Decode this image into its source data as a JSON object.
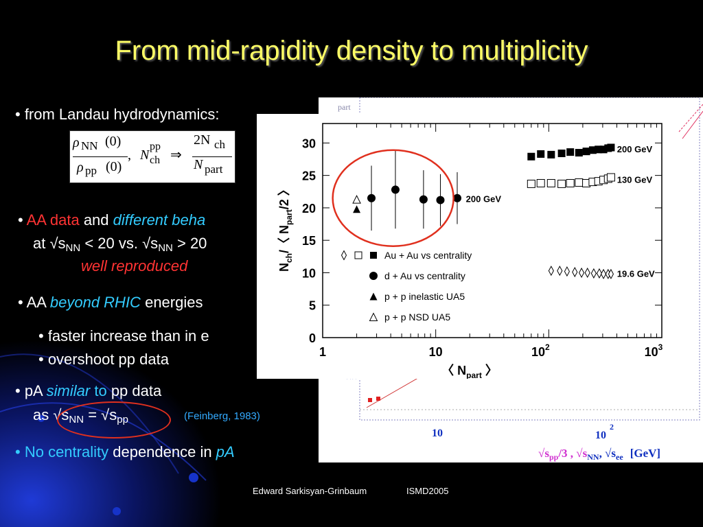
{
  "slide": {
    "title": "From mid-rapidity density to multiplicity",
    "bullets": {
      "b1": "• from Landau hydrodynamics:",
      "b2_bullet": "•",
      "b2_aa": "AA data",
      "b2_and": "and",
      "b2_diff": "different beha",
      "b2_line2_a": "at √s",
      "b2_line2_nn": "NN",
      "b2_line2_b": "< 20 vs. √s",
      "b2_line2_nn2": "NN",
      "b2_line2_c": "> 20",
      "b2_line3": "well reproduced",
      "b3_bullet": "•",
      "b3_aa": "AA",
      "b3_beyond": "beyond RHIC",
      "b3_rest": "energies",
      "b4": "• faster increase than in e",
      "b5": "• overshoot pp data",
      "b6_a": "• pA",
      "b6_sim": "similar",
      "b6_to": "to",
      "b6_pp": "pp data",
      "b7_a": "as √s",
      "b7_nn": "NN",
      "b7_eq": "= √s",
      "b7_pp": "pp",
      "b7_ref": "(Feinberg, 1983)",
      "b8_bullet": "•",
      "b8_no": "No centrality",
      "b8_dep": "dependence in",
      "b8_pa": "pA"
    },
    "footer": {
      "author": "Edward Sarkisyan-Grinbaum",
      "conf": "ISMD2005"
    }
  },
  "formula": {
    "rho": "ρ",
    "nn": "NN",
    "zero": "(0)",
    "pp": "pp",
    "comma": ",",
    "N": "N",
    "sup_pp": "pp",
    "sub_ch": "ch",
    "arrow": "⇒",
    "two_n": "2N",
    "ch": "ch",
    "n_part": "N",
    "part": "part"
  },
  "bg_plot": {
    "ticks": [
      "10",
      "10",
      "2"
    ],
    "xlabel": "√s",
    "xlabel_sub": "pp",
    "xlabel_rest": "/3 , √s",
    "xlabel_sub2": "NN",
    "xlabel_rest2": ", √s",
    "xlabel_sub3": "ee",
    "unit": "[GeV]",
    "corner": "part"
  },
  "chart_data": {
    "type": "scatter",
    "xscale": "log",
    "xlim": [
      1,
      1000
    ],
    "ylim": [
      0,
      33
    ],
    "yticks": [
      0,
      5,
      10,
      15,
      20,
      25,
      30
    ],
    "xticks": [
      "1",
      "10",
      "10",
      "10"
    ],
    "xtick_exp": [
      "",
      "",
      "2",
      "3"
    ],
    "ylabel": "N",
    "ylabel_sub": "ch",
    "ylabel_mid": "/〈 N",
    "ylabel_sub2": "part",
    "ylabel_end": "/2 〉",
    "xlabel_l": "〈 N",
    "xlabel_sub": "part",
    "xlabel_r": "〉",
    "annotations": [
      "200 GeV",
      "130 GeV",
      "19.6 GeV",
      "200 GeV"
    ],
    "legend": [
      "Au + Au vs centrality",
      "d + Au vs centrality",
      "p + p inelastic UA5",
      "p + p NSD UA5"
    ],
    "series": [
      {
        "marker": "filled-square",
        "x": [
          70,
          85,
          105,
          130,
          155,
          185,
          215,
          245,
          275,
          305,
          335,
          355
        ],
        "y": [
          27.9,
          28.3,
          28.2,
          28.4,
          28.6,
          28.5,
          28.7,
          28.9,
          29.0,
          29.0,
          29.2,
          29.3
        ]
      },
      {
        "marker": "open-square",
        "x": [
          70,
          85,
          105,
          130,
          155,
          185,
          215,
          245,
          275,
          305,
          335,
          355
        ],
        "y": [
          23.7,
          23.8,
          23.8,
          23.7,
          23.8,
          23.9,
          23.8,
          24.0,
          24.1,
          24.3,
          24.5,
          24.7
        ]
      },
      {
        "marker": "open-diamond",
        "x": [
          105,
          125,
          145,
          170,
          195,
          220,
          250,
          280,
          305,
          335,
          355
        ],
        "y": [
          10.3,
          10.3,
          10.2,
          10.1,
          10.0,
          10.0,
          9.9,
          9.9,
          9.8,
          9.8,
          9.8
        ]
      },
      {
        "marker": "filled-circle",
        "x": [
          2.7,
          4.4,
          7.8,
          11,
          15.5
        ],
        "y": [
          21.5,
          22.8,
          21.3,
          21.2,
          21.5
        ],
        "err": [
          5,
          6,
          4.5,
          4,
          4
        ]
      },
      {
        "marker": "filled-triangle",
        "x": [
          2
        ],
        "y": [
          19.8
        ]
      },
      {
        "marker": "open-triangle",
        "x": [
          2
        ],
        "y": [
          21.3
        ]
      }
    ]
  },
  "colors": {
    "title": "#ffff66",
    "red": "#ff3333",
    "blue": "#33ccff",
    "circle": "#e0301e"
  }
}
